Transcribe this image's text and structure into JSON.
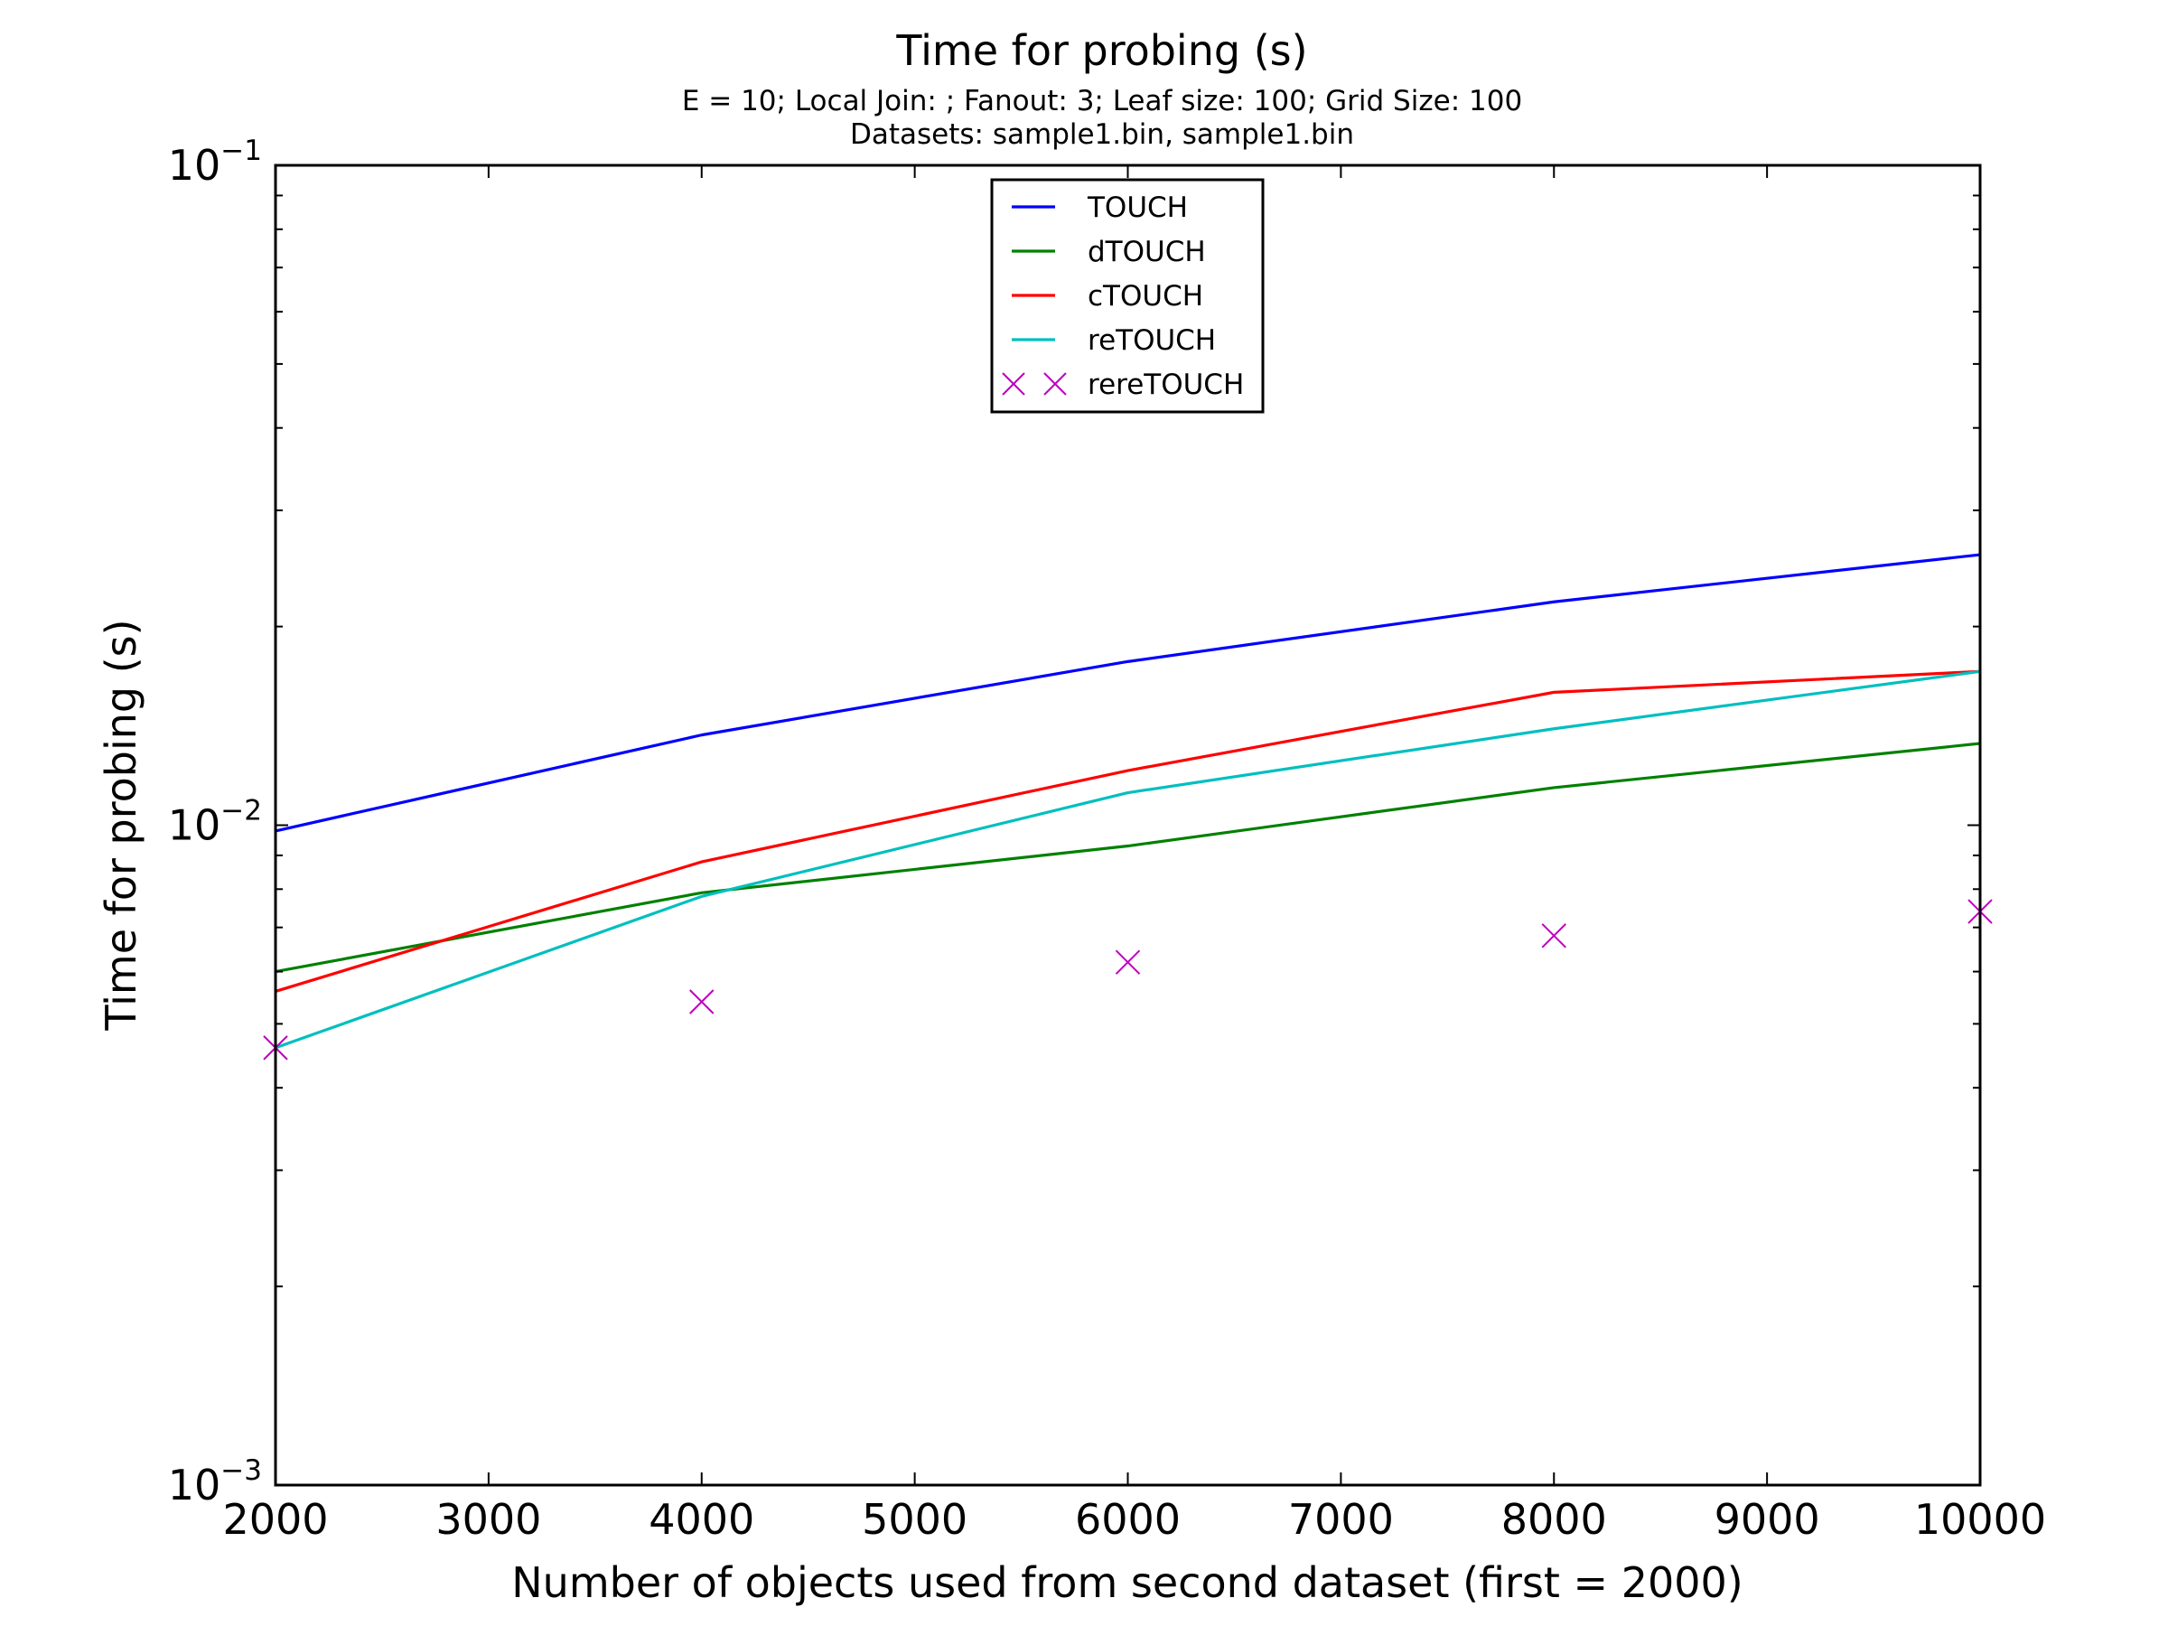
{
  "chart_data": {
    "type": "line",
    "title": "Time for probing (s)",
    "subtitle_lines": [
      "E = 10; Local Join: ; Fanout: 3; Leaf size: 100; Grid Size: 100",
      "Datasets: sample1.bin, sample1.bin"
    ],
    "xlabel": "Number of objects used from second dataset (first = 2000)",
    "ylabel": "Time for probing (s)",
    "xlim": [
      2000,
      10000
    ],
    "ylim": [
      0.001,
      0.1
    ],
    "yscale": "log",
    "x_ticks": [
      {
        "value": 2000,
        "label": "2000"
      },
      {
        "value": 3000,
        "label": "3000"
      },
      {
        "value": 4000,
        "label": "4000"
      },
      {
        "value": 5000,
        "label": "5000"
      },
      {
        "value": 6000,
        "label": "6000"
      },
      {
        "value": 7000,
        "label": "7000"
      },
      {
        "value": 8000,
        "label": "8000"
      },
      {
        "value": 9000,
        "label": "9000"
      },
      {
        "value": 10000,
        "label": "10000"
      }
    ],
    "y_ticks": [
      {
        "value": 0.1,
        "base": "10",
        "exp": "−1"
      },
      {
        "value": 0.01,
        "base": "10",
        "exp": "−2"
      },
      {
        "value": 0.001,
        "base": "10",
        "exp": "−3"
      }
    ],
    "grid": false,
    "legend_position": "top-center",
    "x": [
      2000,
      4000,
      6000,
      8000,
      10000
    ],
    "series": [
      {
        "name": "TOUCH",
        "color": "#0000ff",
        "style": "line",
        "values": [
          0.0098,
          0.0137,
          0.0177,
          0.0218,
          0.0257
        ]
      },
      {
        "name": "dTOUCH",
        "color": "#008000",
        "style": "line",
        "values": [
          0.006,
          0.0079,
          0.0093,
          0.0114,
          0.0133
        ]
      },
      {
        "name": "cTOUCH",
        "color": "#ff0000",
        "style": "line",
        "values": [
          0.0056,
          0.0088,
          0.0121,
          0.0159,
          0.0171
        ]
      },
      {
        "name": "reTOUCH",
        "color": "#00bfbf",
        "style": "line",
        "values": [
          0.0046,
          0.0078,
          0.0112,
          0.014,
          0.0171
        ]
      },
      {
        "name": "rereTOUCH",
        "color": "#bf00bf",
        "style": "marker",
        "values": [
          0.0046,
          0.0054,
          0.0062,
          0.0068,
          0.0074
        ]
      }
    ]
  }
}
